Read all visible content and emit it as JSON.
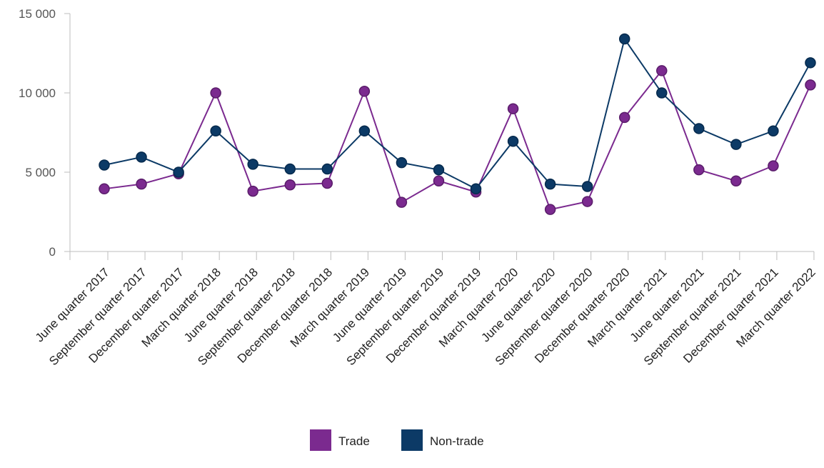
{
  "chart_data": {
    "type": "line",
    "categories": [
      "June quarter 2017",
      "September quarter 2017",
      "December quarter 2017",
      "March quarter 2018",
      "June quarter 2018",
      "September quarter 2018",
      "December quarter 2018",
      "March quarter 2019",
      "June quarter 2019",
      "September quarter 2019",
      "December quarter 2019",
      "March quarter 2020",
      "June quarter 2020",
      "September quarter 2020",
      "December quarter 2020",
      "March quarter 2021",
      "June quarter 2021",
      "September quarter 2021",
      "December quarter 2021",
      "March quarter 2022"
    ],
    "series": [
      {
        "name": "Trade",
        "color": "#7b2a8f",
        "values": [
          3950,
          4250,
          4900,
          10000,
          3800,
          4200,
          4300,
          10100,
          3100,
          4450,
          3750,
          9000,
          2650,
          3150,
          8450,
          11400,
          5150,
          4450,
          5400,
          10500
        ]
      },
      {
        "name": "Non-trade",
        "color": "#0c3a66",
        "values": [
          5450,
          5950,
          5000,
          7600,
          5500,
          5200,
          5200,
          7600,
          5600,
          5150,
          3950,
          6950,
          4250,
          4100,
          13400,
          10000,
          7750,
          6750,
          7600,
          11900
        ]
      }
    ],
    "yticks": [
      0,
      5000,
      10000,
      15000
    ],
    "ytick_labels": [
      "0",
      "5 000",
      "10 000",
      "15 000"
    ],
    "ylim": [
      0,
      15000
    ],
    "grid": false,
    "legend_position": "bottom-center"
  }
}
